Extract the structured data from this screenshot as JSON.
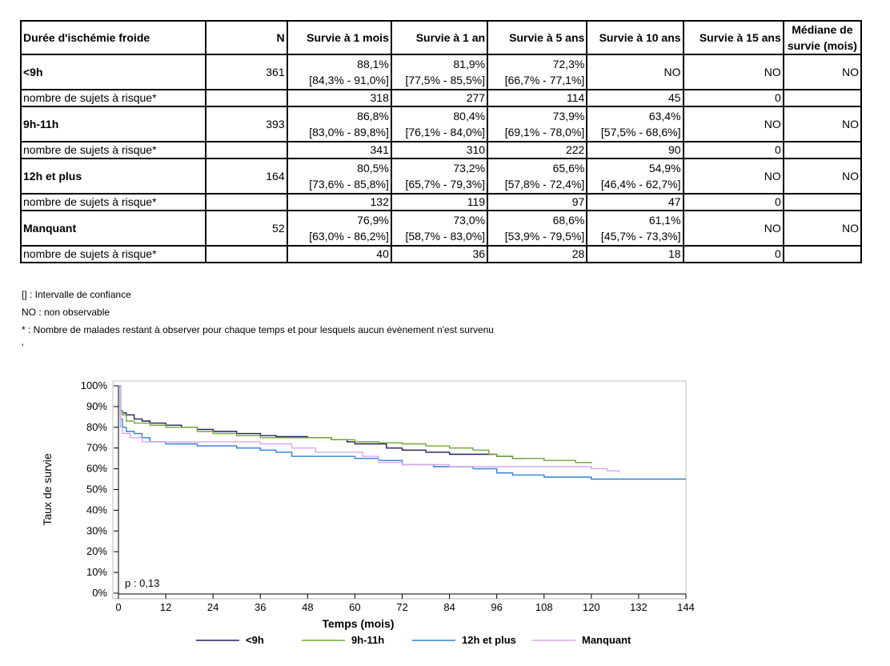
{
  "table": {
    "headers": [
      "Durée d'ischémie froide",
      "N",
      "Survie à 1 mois",
      "Survie à 1 an",
      "Survie à 5 ans",
      "Survie à 10 ans",
      "Survie à 15 ans",
      "Médiane de survie (mois)"
    ],
    "risk_label": "nombre de sujets à risque*",
    "groups": [
      {
        "label": "<9h",
        "n": "361",
        "cells": [
          {
            "est": "88,1%",
            "ci": "[84,3% - 91,0%]"
          },
          {
            "est": "81,9%",
            "ci": "[77,5% - 85,5%]"
          },
          {
            "est": "72,3%",
            "ci": "[66,7% - 77,1%]"
          },
          {
            "est": "NO",
            "ci": ""
          },
          {
            "est": "NO",
            "ci": ""
          },
          {
            "est": "NO",
            "ci": ""
          }
        ],
        "risk": [
          "318",
          "277",
          "114",
          "45",
          "0",
          ""
        ]
      },
      {
        "label": "9h-11h",
        "n": "393",
        "cells": [
          {
            "est": "86,8%",
            "ci": "[83,0% - 89,8%]"
          },
          {
            "est": "80,4%",
            "ci": "[76,1% - 84,0%]"
          },
          {
            "est": "73,9%",
            "ci": "[69,1% - 78,0%]"
          },
          {
            "est": "63,4%",
            "ci": "[57,5% - 68,6%]"
          },
          {
            "est": "NO",
            "ci": ""
          },
          {
            "est": "NO",
            "ci": ""
          }
        ],
        "risk": [
          "341",
          "310",
          "222",
          "90",
          "0",
          ""
        ]
      },
      {
        "label": "12h et plus",
        "n": "164",
        "cells": [
          {
            "est": "80,5%",
            "ci": "[73,6% - 85,8%]"
          },
          {
            "est": "73,2%",
            "ci": "[65,7% - 79,3%]"
          },
          {
            "est": "65,6%",
            "ci": "[57,8% - 72,4%]"
          },
          {
            "est": "54,9%",
            "ci": "[46,4% - 62,7%]"
          },
          {
            "est": "NO",
            "ci": ""
          },
          {
            "est": "NO",
            "ci": ""
          }
        ],
        "risk": [
          "132",
          "119",
          "97",
          "47",
          "0",
          ""
        ]
      },
      {
        "label": "Manquant",
        "n": "52",
        "cells": [
          {
            "est": "76,9%",
            "ci": "[63,0% - 86,2%]"
          },
          {
            "est": "73,0%",
            "ci": "[58,7% - 83,0%]"
          },
          {
            "est": "68,6%",
            "ci": "[53,9% - 79,5%]"
          },
          {
            "est": "61,1%",
            "ci": "[45,7% - 73,3%]"
          },
          {
            "est": "NO",
            "ci": ""
          },
          {
            "est": "NO",
            "ci": ""
          }
        ],
        "risk": [
          "40",
          "36",
          "28",
          "18",
          "0",
          ""
        ]
      }
    ]
  },
  "notes": [
    "[] : Intervalle de confiance",
    "NO : non observable",
    "* : Nombre de malades restant à observer pour chaque temps et pour lesquels aucun évènement n'est survenu",
    "'"
  ],
  "chart_data": {
    "type": "line",
    "title": "",
    "xlabel": "Temps (mois)",
    "ylabel": "Taux de survie",
    "xlim": [
      0,
      144
    ],
    "ylim": [
      0,
      100
    ],
    "xticks": [
      "0",
      "12",
      "24",
      "36",
      "48",
      "60",
      "72",
      "84",
      "96",
      "108",
      "120",
      "132",
      "144"
    ],
    "yticks": [
      "0%",
      "10%",
      "20%",
      "30%",
      "40%",
      "50%",
      "60%",
      "70%",
      "80%",
      "90%",
      "100%"
    ],
    "grid": false,
    "legend": "bottom",
    "annotation": "p : 0,13",
    "series": [
      {
        "name": "<9h",
        "color": "#1f1f5f",
        "step": true,
        "points": [
          [
            0,
            100
          ],
          [
            0.5,
            88
          ],
          [
            1,
            87
          ],
          [
            2,
            86
          ],
          [
            4,
            84
          ],
          [
            6,
            83
          ],
          [
            8,
            82
          ],
          [
            12,
            81
          ],
          [
            16,
            80
          ],
          [
            20,
            79
          ],
          [
            24,
            78
          ],
          [
            30,
            77
          ],
          [
            36,
            76
          ],
          [
            40,
            75.5
          ],
          [
            48,
            75
          ],
          [
            54,
            74
          ],
          [
            58,
            73
          ],
          [
            60,
            72
          ],
          [
            68,
            70
          ],
          [
            72,
            69
          ],
          [
            78,
            68
          ],
          [
            84,
            67
          ],
          [
            90,
            67
          ],
          [
            96,
            66
          ],
          [
            100,
            65
          ],
          [
            103,
            65
          ]
        ]
      },
      {
        "name": "9h-11h",
        "color": "#6fa832",
        "step": true,
        "points": [
          [
            0,
            100
          ],
          [
            0.5,
            88
          ],
          [
            1,
            86
          ],
          [
            2,
            83
          ],
          [
            4,
            82
          ],
          [
            8,
            81
          ],
          [
            12,
            80
          ],
          [
            20,
            78
          ],
          [
            24,
            77
          ],
          [
            30,
            76
          ],
          [
            36,
            75
          ],
          [
            48,
            75
          ],
          [
            54,
            74
          ],
          [
            60,
            73
          ],
          [
            66,
            72.5
          ],
          [
            72,
            72
          ],
          [
            78,
            71
          ],
          [
            84,
            70
          ],
          [
            90,
            69
          ],
          [
            94,
            67
          ],
          [
            96,
            66
          ],
          [
            100,
            65
          ],
          [
            108,
            64
          ],
          [
            116,
            63
          ],
          [
            120,
            62.5
          ]
        ]
      },
      {
        "name": "12h et plus",
        "color": "#2f7fd8",
        "step": true,
        "points": [
          [
            0,
            100
          ],
          [
            0.5,
            84
          ],
          [
            1,
            80
          ],
          [
            2,
            78
          ],
          [
            4,
            77
          ],
          [
            6,
            75
          ],
          [
            8,
            73
          ],
          [
            12,
            72
          ],
          [
            20,
            71
          ],
          [
            30,
            70
          ],
          [
            36,
            69
          ],
          [
            40,
            68
          ],
          [
            44,
            66
          ],
          [
            56,
            66
          ],
          [
            60,
            65
          ],
          [
            66,
            64
          ],
          [
            72,
            62
          ],
          [
            80,
            61
          ],
          [
            90,
            60
          ],
          [
            96,
            58
          ],
          [
            100,
            57
          ],
          [
            108,
            56
          ],
          [
            116,
            56
          ],
          [
            120,
            55
          ],
          [
            132,
            55
          ],
          [
            144,
            55
          ]
        ]
      },
      {
        "name": "Manquant",
        "color": "#d7a8ec",
        "step": true,
        "points": [
          [
            0,
            100
          ],
          [
            0.5,
            80
          ],
          [
            1,
            77
          ],
          [
            3,
            75
          ],
          [
            6,
            73
          ],
          [
            12,
            73
          ],
          [
            24,
            73
          ],
          [
            36,
            72
          ],
          [
            44,
            70
          ],
          [
            50,
            68
          ],
          [
            58,
            68
          ],
          [
            62,
            66
          ],
          [
            66,
            63
          ],
          [
            72,
            62
          ],
          [
            84,
            61
          ],
          [
            96,
            61
          ],
          [
            108,
            61
          ],
          [
            120,
            60
          ],
          [
            124,
            59
          ],
          [
            127,
            58
          ]
        ]
      }
    ]
  }
}
